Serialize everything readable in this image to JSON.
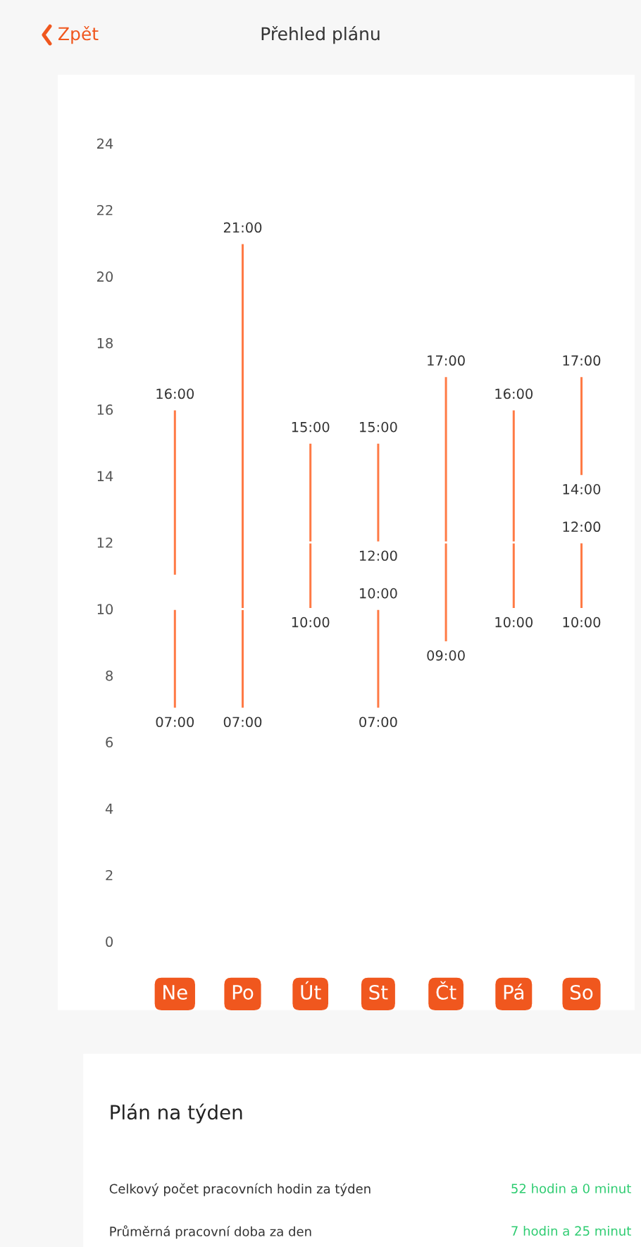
{
  "chart_data": {
    "type": "bar",
    "title": "Přehled plánu",
    "categories": [
      "Ne",
      "Po",
      "Út",
      "St",
      "Čt",
      "Pá",
      "So"
    ],
    "series": [
      {
        "color": "#ff7a45",
        "base": [
          7,
          7,
          10,
          7,
          9,
          10,
          10
        ],
        "values": [
          3,
          3,
          2,
          3,
          3,
          2,
          2
        ]
      },
      {
        "color": "#ff7a45",
        "base": [
          11,
          10,
          12,
          12,
          12,
          12,
          14
        ],
        "values": [
          5,
          11,
          3,
          3,
          5,
          4,
          3
        ]
      }
    ],
    "ylim": [
      0,
      24
    ],
    "yticks": [
      0,
      2,
      4,
      6,
      8,
      10,
      12,
      14,
      16,
      18,
      20,
      22,
      24
    ],
    "grid": false,
    "legend": false,
    "annotations": [
      {
        "text": "16:00",
        "x": "Ne",
        "y": 16
      },
      {
        "text": "07:00",
        "x": "Ne",
        "y": 7
      },
      {
        "text": "21:00",
        "x": "Po",
        "y": 21
      },
      {
        "text": "07:00",
        "x": "Po",
        "y": 7
      },
      {
        "text": "15:00",
        "x": "Út",
        "y": 15
      },
      {
        "text": "10:00",
        "x": "Út",
        "y": 10
      },
      {
        "text": "15:00",
        "x": "St",
        "y": 15
      },
      {
        "text": "12:00",
        "x": "St",
        "y": 12
      },
      {
        "text": "10:00",
        "x": "St",
        "y": 10
      },
      {
        "text": "07:00",
        "x": "St",
        "y": 7
      },
      {
        "text": "17:00",
        "x": "Čt",
        "y": 17
      },
      {
        "text": "09:00",
        "x": "Čt",
        "y": 9
      },
      {
        "text": "16:00",
        "x": "Pá",
        "y": 16
      },
      {
        "text": "10:00",
        "x": "Pá",
        "y": 10
      },
      {
        "text": "17:00",
        "x": "So",
        "y": 17
      },
      {
        "text": "14:00",
        "x": "So",
        "y": 14
      },
      {
        "text": "12:00",
        "x": "So",
        "y": 12
      },
      {
        "text": "10:00",
        "x": "So",
        "y": 10
      },
      "Zpět",
      "Plán na týden",
      "Celkový počet pracovních hodin za týden",
      "52 hodin a 0 minut",
      "Průměrná pracovní doba za den",
      "7 hodin a 25 minut"
    ]
  }
}
